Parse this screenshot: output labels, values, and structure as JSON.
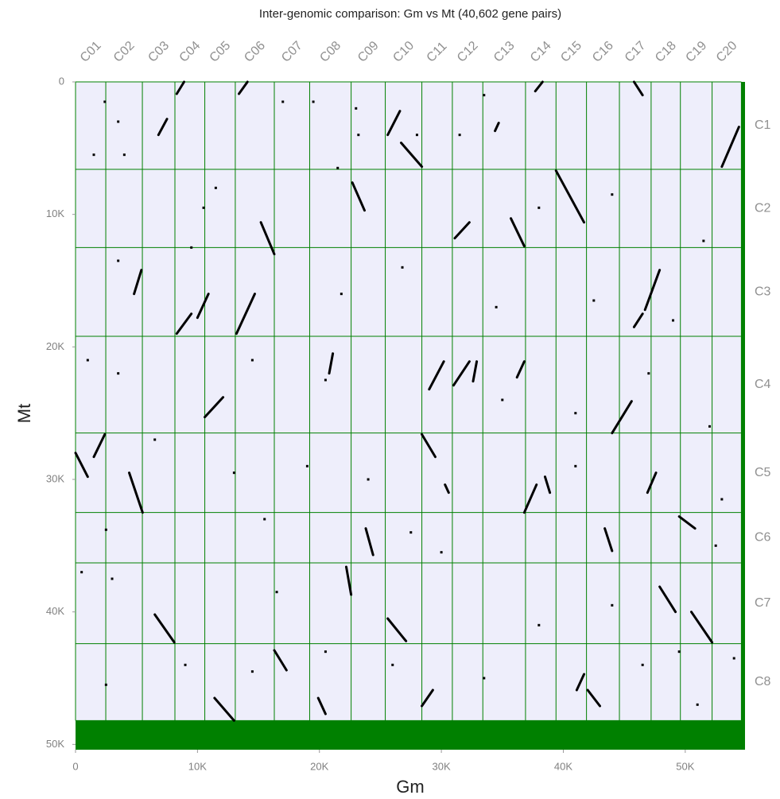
{
  "chart_data": {
    "type": "dotplot",
    "title": "Inter-genomic comparison: Gm vs Mt (40,602 gene pairs)",
    "x_label": "Gm",
    "y_label": "Mt",
    "xlim": [
      0,
      54900
    ],
    "ylim": [
      0,
      50400
    ],
    "xticks": [
      0,
      {
        "value": 10000,
        "label": "10K"
      },
      {
        "value": 20000,
        "label": "20K"
      },
      {
        "value": 30000,
        "label": "30K"
      },
      {
        "value": 40000,
        "label": "40K"
      },
      {
        "value": 50000,
        "label": "50K"
      }
    ],
    "yticks": [
      0,
      {
        "value": 10000,
        "label": "10K"
      },
      {
        "value": 20000,
        "label": "20K"
      },
      {
        "value": 30000,
        "label": "30K"
      },
      {
        "value": 40000,
        "label": "40K"
      },
      {
        "value": 50000,
        "label": "50K"
      }
    ],
    "x_chromosomes": {
      "names": [
        "C01",
        "C02",
        "C03",
        "C04",
        "C05",
        "C06",
        "C07",
        "C08",
        "C09",
        "C10",
        "C11",
        "C12",
        "C13",
        "C14",
        "C15",
        "C16",
        "C17",
        "C18",
        "C19",
        "C20"
      ],
      "starts": [
        0,
        2480,
        5480,
        8150,
        10600,
        13100,
        16300,
        19200,
        22600,
        25400,
        28400,
        30900,
        33400,
        36900,
        39400,
        41900,
        44600,
        47200,
        49600,
        52200
      ],
      "end": 54600
    },
    "y_chromosomes": {
      "names": [
        "C1",
        "C2",
        "C3",
        "C4",
        "C5",
        "C6",
        "C7",
        "C8"
      ],
      "starts": [
        0,
        6600,
        12500,
        19200,
        26500,
        32500,
        36300,
        42400
      ],
      "end": 48200
    },
    "color": "#000000",
    "grid_color": "#008000",
    "background": "#eeeefb",
    "blocks": [
      {
        "x": [
          8900,
          8300
        ],
        "y": [
          0,
          900
        ]
      },
      {
        "x": [
          14100,
          13400
        ],
        "y": [
          0,
          900
        ]
      },
      {
        "x": [
          25600,
          26600
        ],
        "y": [
          4000,
          2200
        ]
      },
      {
        "x": [
          26700,
          28400
        ],
        "y": [
          4600,
          6400
        ]
      },
      {
        "x": [
          38300,
          37700
        ],
        "y": [
          0,
          700
        ]
      },
      {
        "x": [
          45800,
          46500
        ],
        "y": [
          0,
          1000
        ]
      },
      {
        "x": [
          53000,
          54400
        ],
        "y": [
          6400,
          3400
        ]
      },
      {
        "x": [
          22700,
          23700
        ],
        "y": [
          7600,
          9700
        ]
      },
      {
        "x": [
          39400,
          41700
        ],
        "y": [
          6700,
          10600
        ]
      },
      {
        "x": [
          35700,
          36800
        ],
        "y": [
          10300,
          12400
        ]
      },
      {
        "x": [
          31100,
          32300
        ],
        "y": [
          11800,
          10600
        ]
      },
      {
        "x": [
          15200,
          16300
        ],
        "y": [
          10600,
          13000
        ]
      },
      {
        "x": [
          46700,
          47900
        ],
        "y": [
          17200,
          14200
        ]
      },
      {
        "x": [
          8300,
          9500
        ],
        "y": [
          19000,
          17500
        ]
      },
      {
        "x": [
          10000,
          10900
        ],
        "y": [
          17800,
          16000
        ]
      },
      {
        "x": [
          13200,
          14700
        ],
        "y": [
          19000,
          16000
        ]
      },
      {
        "x": [
          4800,
          5400
        ],
        "y": [
          16000,
          14200
        ]
      },
      {
        "x": [
          45800,
          46500
        ],
        "y": [
          18500,
          17500
        ]
      },
      {
        "x": [
          31000,
          32300
        ],
        "y": [
          22900,
          21100
        ]
      },
      {
        "x": [
          29000,
          30200
        ],
        "y": [
          23200,
          21100
        ]
      },
      {
        "x": [
          36200,
          36800
        ],
        "y": [
          22300,
          21100
        ]
      },
      {
        "x": [
          10600,
          12100
        ],
        "y": [
          25300,
          23800
        ]
      },
      {
        "x": [
          44000,
          45600
        ],
        "y": [
          26500,
          24100
        ]
      },
      {
        "x": [
          0,
          1000
        ],
        "y": [
          28000,
          29800
        ]
      },
      {
        "x": [
          1500,
          2400
        ],
        "y": [
          28300,
          26600
        ]
      },
      {
        "x": [
          4400,
          5500
        ],
        "y": [
          29500,
          32500
        ]
      },
      {
        "x": [
          28400,
          29500
        ],
        "y": [
          26600,
          28300
        ]
      },
      {
        "x": [
          36800,
          37800
        ],
        "y": [
          32500,
          30400
        ]
      },
      {
        "x": [
          38500,
          38900
        ],
        "y": [
          29800,
          31000
        ]
      },
      {
        "x": [
          46900,
          47600
        ],
        "y": [
          31000,
          29500
        ]
      },
      {
        "x": [
          49500,
          50800
        ],
        "y": [
          32800,
          33700
        ]
      },
      {
        "x": [
          23800,
          24400
        ],
        "y": [
          33700,
          35700
        ]
      },
      {
        "x": [
          43400,
          44000
        ],
        "y": [
          33700,
          35400
        ]
      },
      {
        "x": [
          47900,
          49200
        ],
        "y": [
          38100,
          40000
        ]
      },
      {
        "x": [
          50500,
          52200
        ],
        "y": [
          40000,
          42300
        ]
      },
      {
        "x": [
          6500,
          8100
        ],
        "y": [
          40200,
          42300
        ]
      },
      {
        "x": [
          25600,
          27100
        ],
        "y": [
          40500,
          42200
        ]
      },
      {
        "x": [
          22200,
          22600
        ],
        "y": [
          36600,
          38700
        ]
      },
      {
        "x": [
          16300,
          17300
        ],
        "y": [
          42900,
          44400
        ]
      },
      {
        "x": [
          11400,
          13000
        ],
        "y": [
          46500,
          48200
        ]
      },
      {
        "x": [
          19900,
          20500
        ],
        "y": [
          46500,
          47700
        ]
      },
      {
        "x": [
          28400,
          29300
        ],
        "y": [
          47100,
          45900
        ]
      },
      {
        "x": [
          42000,
          43000
        ],
        "y": [
          45900,
          47100
        ]
      },
      {
        "x": [
          41100,
          41700
        ],
        "y": [
          45900,
          44700
        ]
      },
      {
        "x": [
          34400,
          34700
        ],
        "y": [
          3700,
          3100
        ]
      },
      {
        "x": [
          6800,
          7500
        ],
        "y": [
          4000,
          2800
        ]
      },
      {
        "x": [
          32600,
          32900
        ],
        "y": [
          22600,
          21100
        ]
      },
      {
        "x": [
          20800,
          21100
        ],
        "y": [
          22000,
          20500
        ]
      },
      {
        "x": [
          30300,
          30600
        ],
        "y": [
          30400,
          31000
        ]
      }
    ],
    "points": {
      "x": [
        1500,
        2400,
        3500,
        4000,
        10500,
        11500,
        17000,
        19500,
        21500,
        23000,
        23200,
        28000,
        31500,
        33500,
        38000,
        44000,
        51500,
        3500,
        9500,
        21800,
        26800,
        34500,
        42500,
        49000,
        1000,
        3500,
        14500,
        20500,
        35000,
        41000,
        47000,
        52000,
        6500,
        13000,
        19000,
        24000,
        41000,
        53000,
        2500,
        15500,
        27500,
        30000,
        52500,
        500,
        3000,
        16500,
        38000,
        44000,
        2500,
        9000,
        14500,
        20500,
        26000,
        33500,
        46500,
        49500,
        51000,
        54000
      ],
      "y": [
        5500,
        1500,
        3000,
        5500,
        9500,
        8000,
        1500,
        1500,
        6500,
        2000,
        4000,
        4000,
        4000,
        1000,
        9500,
        8500,
        12000,
        13500,
        12500,
        16000,
        14000,
        17000,
        16500,
        18000,
        21000,
        22000,
        21000,
        22500,
        24000,
        25000,
        22000,
        26000,
        27000,
        29500,
        29000,
        30000,
        29000,
        31500,
        33800,
        33000,
        34000,
        35500,
        35000,
        37000,
        37500,
        38500,
        41000,
        39500,
        45500,
        44000,
        44500,
        43000,
        44000,
        45000,
        44000,
        43000,
        47000,
        43500
      ]
    }
  }
}
